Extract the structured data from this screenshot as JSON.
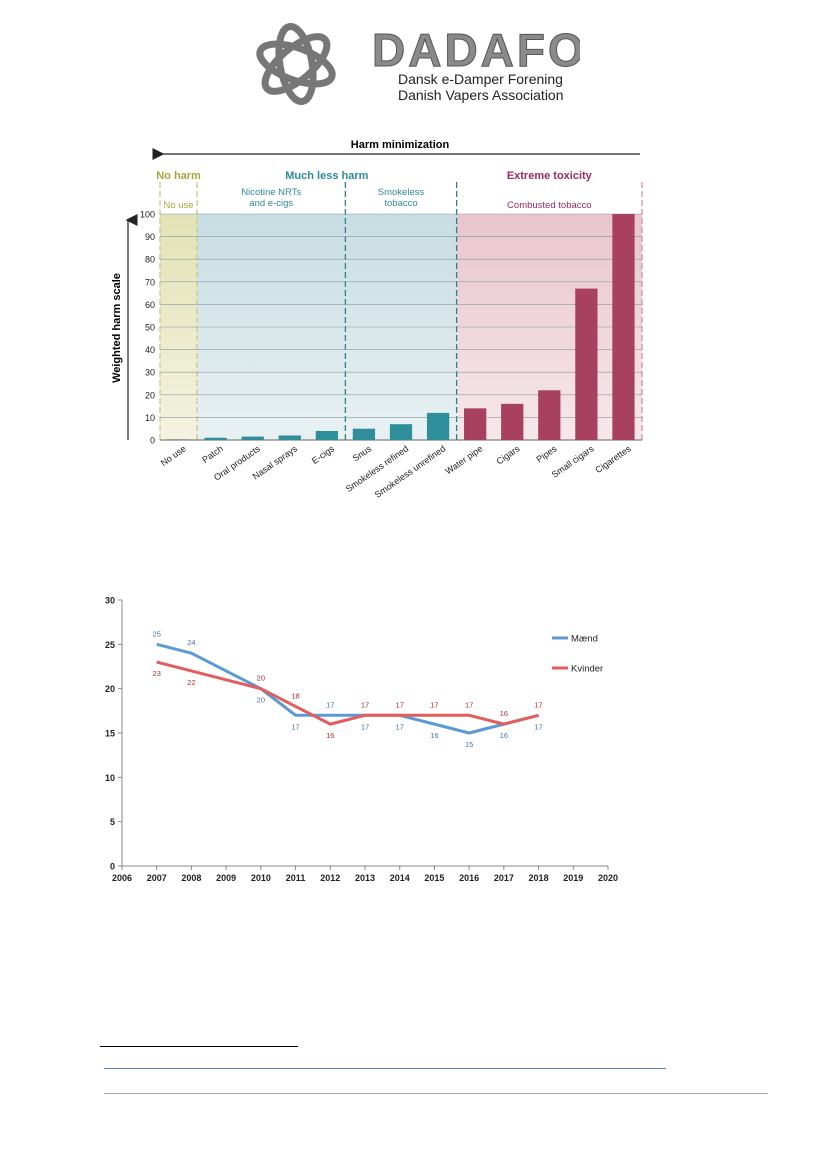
{
  "logo": {
    "name": "DADAFO",
    "line1": "Dansk e-Damper Forening",
    "line2": "Danish Vapers Association"
  },
  "chart_data": [
    {
      "type": "bar",
      "title": "Harm minimization",
      "ylabel": "Weighted harm scale",
      "xlabel": "",
      "ylim": [
        0,
        100
      ],
      "yticks": [
        0,
        10,
        20,
        30,
        40,
        50,
        60,
        70,
        80,
        90,
        100
      ],
      "grid": true,
      "categories": [
        "No use",
        "Patch",
        "Oral products",
        "Nasal sprays",
        "E-cigs",
        "Snus",
        "Smokeless refined",
        "Smokeless unrefined",
        "Water pipe",
        "Cigars",
        "Pipes",
        "Small cigars",
        "Cigarettes"
      ],
      "values": [
        0,
        1,
        1.5,
        2,
        4,
        5,
        7,
        12,
        14,
        16,
        22,
        67,
        100
      ],
      "zones": [
        {
          "header": "No harm",
          "subheader": "No use",
          "color": "#a7a73c"
        },
        {
          "header": "Much less harm",
          "subheader": "Nicotine NRTs and e-cigs",
          "color": "#2e8a99"
        },
        {
          "header": "",
          "subheader": "Smokeless tobacco",
          "color": "#2e8a99"
        },
        {
          "header": "Extreme toxicity",
          "subheader": "Combusted tobacco",
          "color": "#9c2a64"
        }
      ],
      "colors": {
        "teal": "#2e8f9b",
        "maroon": "#a8415f"
      }
    },
    {
      "type": "line",
      "x": [
        2007,
        2008,
        2010,
        2011,
        2012,
        2013,
        2014,
        2015,
        2016,
        2017,
        2018
      ],
      "xlim": [
        2006,
        2020
      ],
      "xticks": [
        2006,
        2007,
        2008,
        2009,
        2010,
        2011,
        2012,
        2013,
        2014,
        2015,
        2016,
        2017,
        2018,
        2019,
        2020
      ],
      "ylim": [
        0,
        30
      ],
      "yticks": [
        0,
        5,
        10,
        15,
        20,
        25,
        30
      ],
      "grid": false,
      "legend": "right",
      "series": [
        {
          "name": "Mænd",
          "color": "#5b9bd5",
          "values": [
            25,
            24,
            20,
            17,
            17,
            17,
            17,
            16,
            15,
            16,
            17
          ]
        },
        {
          "name": "Kvinder",
          "color": "#e35d5d",
          "values": [
            23,
            22,
            20,
            18,
            16,
            17,
            17,
            17,
            17,
            16,
            17
          ]
        }
      ]
    }
  ]
}
